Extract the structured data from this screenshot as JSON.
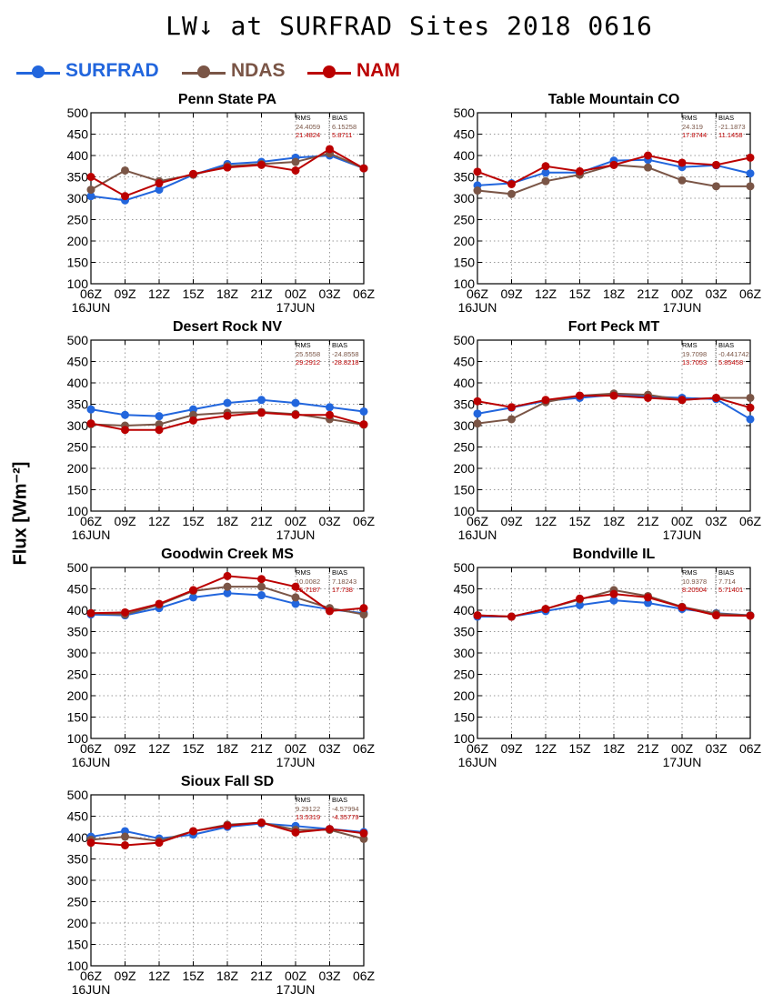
{
  "title": "LW↓ at SURFRAD Sites    2018 0616",
  "y_axis_label": "Flux [Wm⁻²]",
  "colors": {
    "SURFRAD": "#2266dd",
    "NDAS": "#7a5546",
    "NAM": "#bb0000",
    "grid": "#9a9a9a"
  },
  "legend": [
    {
      "name": "SURFRAD",
      "color": "#2266dd"
    },
    {
      "name": "NDAS",
      "color": "#7a5546"
    },
    {
      "name": "NAM",
      "color": "#bb0000"
    }
  ],
  "chart_data": [
    {
      "type": "line",
      "title": "Penn State PA",
      "x": [
        "06Z",
        "09Z",
        "12Z",
        "15Z",
        "18Z",
        "21Z",
        "00Z",
        "03Z",
        "06Z"
      ],
      "date_labels": [
        "16JUN",
        "17JUN"
      ],
      "ylim": [
        100,
        500
      ],
      "yticks": [
        100,
        150,
        200,
        250,
        300,
        350,
        400,
        450,
        500
      ],
      "grid": true,
      "stats": {
        "headers": [
          "RMS",
          "BIAS"
        ],
        "rows": [
          [
            "24.4059",
            "6.15258"
          ],
          [
            "21.4824",
            "5.8711"
          ]
        ]
      },
      "series": [
        {
          "name": "SURFRAD",
          "values": [
            305,
            295,
            320,
            355,
            380,
            385,
            395,
            400,
            370
          ]
        },
        {
          "name": "NDAS",
          "values": [
            320,
            365,
            340,
            355,
            375,
            380,
            385,
            405,
            370
          ]
        },
        {
          "name": "NAM",
          "values": [
            350,
            305,
            335,
            357,
            372,
            378,
            365,
            415,
            370
          ]
        }
      ]
    },
    {
      "type": "line",
      "title": "Table Mountain CO",
      "x": [
        "06Z",
        "09Z",
        "12Z",
        "15Z",
        "18Z",
        "21Z",
        "00Z",
        "03Z",
        "06Z"
      ],
      "date_labels": [
        "16JUN",
        "17JUN"
      ],
      "ylim": [
        100,
        500
      ],
      "yticks": [
        100,
        150,
        200,
        250,
        300,
        350,
        400,
        450,
        500
      ],
      "grid": true,
      "stats": {
        "headers": [
          "RMS",
          "BIAS"
        ],
        "rows": [
          [
            "24.319",
            "-21.1873"
          ],
          [
            "17.8744",
            "11.1458"
          ]
        ]
      },
      "series": [
        {
          "name": "SURFRAD",
          "values": [
            330,
            335,
            360,
            360,
            388,
            390,
            373,
            377,
            358
          ]
        },
        {
          "name": "NDAS",
          "values": [
            318,
            310,
            340,
            355,
            378,
            372,
            342,
            328,
            328
          ]
        },
        {
          "name": "NAM",
          "values": [
            362,
            333,
            375,
            363,
            378,
            400,
            383,
            378,
            395
          ]
        }
      ]
    },
    {
      "type": "line",
      "title": "Desert Rock NV",
      "x": [
        "06Z",
        "09Z",
        "12Z",
        "15Z",
        "18Z",
        "21Z",
        "00Z",
        "03Z",
        "06Z"
      ],
      "date_labels": [
        "16JUN",
        "17JUN"
      ],
      "ylim": [
        100,
        500
      ],
      "yticks": [
        100,
        150,
        200,
        250,
        300,
        350,
        400,
        450,
        500
      ],
      "grid": true,
      "stats": {
        "headers": [
          "RMS",
          "BIAS"
        ],
        "rows": [
          [
            "25.5558",
            "-24.8558"
          ],
          [
            "29.2912",
            "-28.8218"
          ]
        ]
      },
      "series": [
        {
          "name": "SURFRAD",
          "values": [
            338,
            325,
            322,
            338,
            353,
            360,
            353,
            343,
            333
          ]
        },
        {
          "name": "NDAS",
          "values": [
            303,
            300,
            303,
            325,
            330,
            332,
            327,
            315,
            302
          ]
        },
        {
          "name": "NAM",
          "values": [
            305,
            290,
            290,
            312,
            323,
            330,
            325,
            325,
            303
          ]
        }
      ]
    },
    {
      "type": "line",
      "title": "Fort Peck MT",
      "x": [
        "06Z",
        "09Z",
        "12Z",
        "15Z",
        "18Z",
        "21Z",
        "00Z",
        "03Z",
        "06Z"
      ],
      "date_labels": [
        "16JUN",
        "17JUN"
      ],
      "ylim": [
        100,
        500
      ],
      "yticks": [
        100,
        150,
        200,
        250,
        300,
        350,
        400,
        450,
        500
      ],
      "grid": true,
      "stats": {
        "headers": [
          "RMS",
          "BIAS"
        ],
        "rows": [
          [
            "19.7098",
            "-0.441742"
          ],
          [
            "13.7053",
            "5.85458"
          ]
        ]
      },
      "series": [
        {
          "name": "SURFRAD",
          "values": [
            328,
            342,
            358,
            365,
            372,
            368,
            365,
            362,
            315
          ]
        },
        {
          "name": "NDAS",
          "values": [
            305,
            315,
            355,
            370,
            375,
            372,
            360,
            365,
            365
          ]
        },
        {
          "name": "NAM",
          "values": [
            357,
            343,
            360,
            370,
            370,
            365,
            360,
            365,
            342
          ]
        }
      ]
    },
    {
      "type": "line",
      "title": "Goodwin Creek MS",
      "x": [
        "06Z",
        "09Z",
        "12Z",
        "15Z",
        "18Z",
        "21Z",
        "00Z",
        "03Z",
        "06Z"
      ],
      "date_labels": [
        "16JUN",
        "17JUN"
      ],
      "ylim": [
        100,
        500
      ],
      "yticks": [
        100,
        150,
        200,
        250,
        300,
        350,
        400,
        450,
        500
      ],
      "grid": true,
      "stats": {
        "headers": [
          "RMS",
          "BIAS"
        ],
        "rows": [
          [
            "10.0082",
            "7.18243"
          ],
          [
            "25.7187",
            "17.738"
          ]
        ]
      },
      "series": [
        {
          "name": "SURFRAD",
          "values": [
            390,
            388,
            405,
            430,
            440,
            435,
            415,
            402,
            393
          ]
        },
        {
          "name": "NDAS",
          "values": [
            393,
            390,
            413,
            445,
            455,
            455,
            430,
            405,
            390
          ]
        },
        {
          "name": "NAM",
          "values": [
            393,
            395,
            415,
            447,
            480,
            473,
            455,
            398,
            405
          ]
        }
      ]
    },
    {
      "type": "line",
      "title": "Bondville IL",
      "x": [
        "06Z",
        "09Z",
        "12Z",
        "15Z",
        "18Z",
        "21Z",
        "00Z",
        "03Z",
        "06Z"
      ],
      "date_labels": [
        "16JUN",
        "17JUN"
      ],
      "ylim": [
        100,
        500
      ],
      "yticks": [
        100,
        150,
        200,
        250,
        300,
        350,
        400,
        450,
        500
      ],
      "grid": true,
      "stats": {
        "headers": [
          "RMS",
          "BIAS"
        ],
        "rows": [
          [
            "10.9378",
            "7.714"
          ],
          [
            "8.20504",
            "5.71401"
          ]
        ]
      },
      "series": [
        {
          "name": "SURFRAD",
          "values": [
            385,
            385,
            398,
            412,
            423,
            417,
            403,
            393,
            388
          ]
        },
        {
          "name": "NDAS",
          "values": [
            388,
            385,
            403,
            425,
            447,
            433,
            408,
            392,
            388
          ]
        },
        {
          "name": "NAM",
          "values": [
            388,
            385,
            403,
            427,
            438,
            430,
            407,
            388,
            387
          ]
        }
      ]
    },
    {
      "type": "line",
      "title": "Sioux Fall SD",
      "x": [
        "06Z",
        "09Z",
        "12Z",
        "15Z",
        "18Z",
        "21Z",
        "00Z",
        "03Z",
        "06Z"
      ],
      "date_labels": [
        "16JUN",
        "17JUN"
      ],
      "ylim": [
        100,
        500
      ],
      "yticks": [
        100,
        150,
        200,
        250,
        300,
        350,
        400,
        450,
        500
      ],
      "grid": true,
      "stats": {
        "headers": [
          "RMS",
          "BIAS"
        ],
        "rows": [
          [
            "9.29122",
            "-4.57994"
          ],
          [
            "13.5319",
            "-4.35779"
          ]
        ]
      },
      "series": [
        {
          "name": "SURFRAD",
          "values": [
            402,
            415,
            398,
            407,
            425,
            433,
            427,
            420,
            413
          ]
        },
        {
          "name": "NDAS",
          "values": [
            395,
            402,
            392,
            415,
            430,
            435,
            418,
            418,
            397
          ]
        },
        {
          "name": "NAM",
          "values": [
            388,
            382,
            388,
            415,
            428,
            435,
            412,
            420,
            410
          ]
        }
      ]
    }
  ]
}
